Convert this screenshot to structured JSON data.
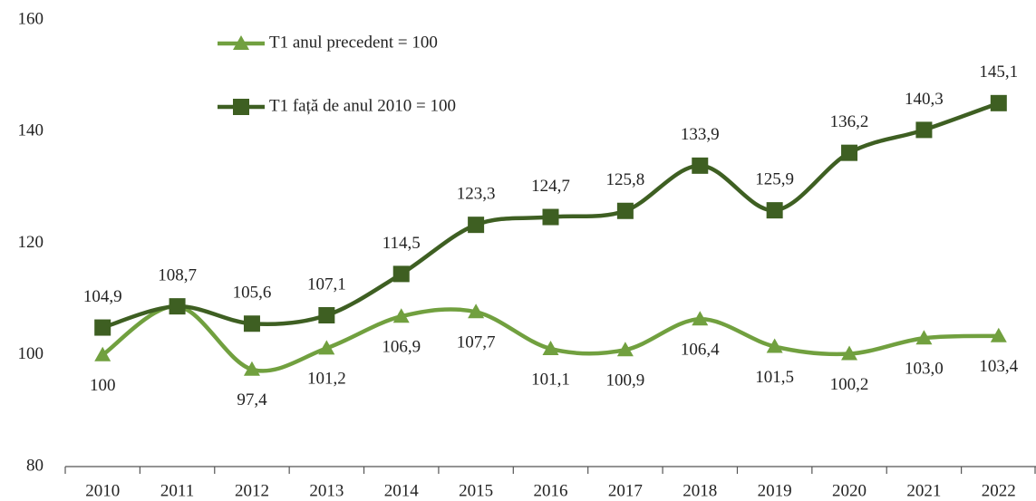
{
  "chart_data": {
    "type": "line",
    "categories": [
      "2010",
      "2011",
      "2012",
      "2013",
      "2014",
      "2015",
      "2016",
      "2017",
      "2018",
      "2019",
      "2020",
      "2021",
      "2022"
    ],
    "series": [
      {
        "name": "T1 anul precedent = 100",
        "color": "#71a03f",
        "marker": "triangle",
        "values": [
          100,
          108.7,
          97.4,
          101.2,
          106.9,
          107.7,
          101.1,
          100.9,
          106.4,
          101.5,
          100.2,
          103.0,
          103.4
        ],
        "value_labels": [
          "100",
          null,
          "97,4",
          "101,2",
          "106,9",
          "107,7",
          "101,1",
          "100,9",
          "106,4",
          "101,5",
          "100,2",
          "103,0",
          "103,4"
        ]
      },
      {
        "name": "T1 față de anul 2010 = 100",
        "color": "#3e5f22",
        "marker": "square",
        "values": [
          104.9,
          108.7,
          105.6,
          107.1,
          114.5,
          123.3,
          124.7,
          125.8,
          133.9,
          125.9,
          136.2,
          140.3,
          145.1
        ],
        "value_labels": [
          "104,9",
          "108,7",
          "105,6",
          "107,1",
          "114,5",
          "123,3",
          "124,7",
          "125,8",
          "133,9",
          "125,9",
          "136,2",
          "140,3",
          "145,1"
        ]
      }
    ],
    "ylim": [
      80,
      160
    ],
    "yticks": [
      80,
      100,
      120,
      140,
      160
    ],
    "grid": false,
    "smooth": true
  }
}
